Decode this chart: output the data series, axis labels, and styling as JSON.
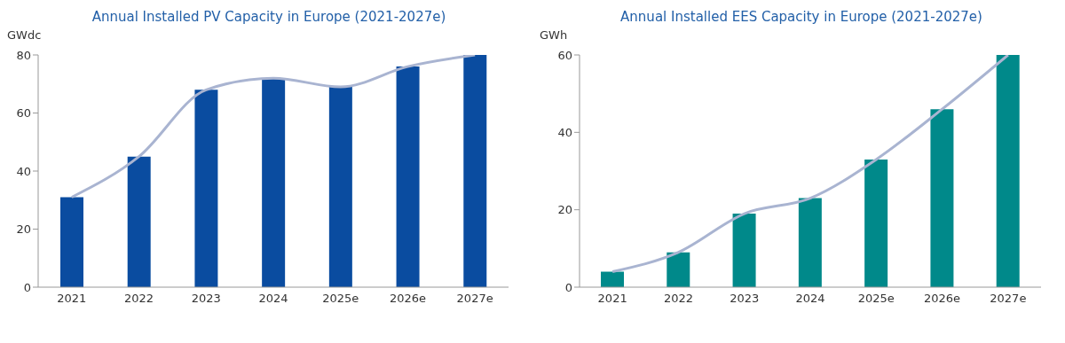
{
  "chart_data": [
    {
      "type": "bar",
      "title": "Annual Installed PV Capacity in Europe (2021-2027e)",
      "ylabel": "GWdc",
      "categories": [
        "2021",
        "2022",
        "2023",
        "2024",
        "2025e",
        "2026e",
        "2027e"
      ],
      "series": [
        {
          "color": "#0a4ca0",
          "values": [
            31,
            45,
            68,
            72,
            69,
            76,
            80
          ]
        },
        {
          "type": "line",
          "color": "#a9b4d1",
          "values": [
            31,
            45,
            68,
            72,
            69,
            76,
            80
          ]
        }
      ],
      "ylim": [
        0,
        80
      ],
      "yticks": [
        0,
        20,
        40,
        60,
        80
      ],
      "grid": false,
      "legend": false
    },
    {
      "type": "bar",
      "title": "Annual Installed EES Capacity in Europe (2021-2027e)",
      "ylabel": "GWh",
      "categories": [
        "2021",
        "2022",
        "2023",
        "2024",
        "2025e",
        "2026e",
        "2027e"
      ],
      "series": [
        {
          "color": "#00898a",
          "values": [
            4,
            9,
            19,
            23,
            33,
            46,
            60
          ]
        },
        {
          "type": "line",
          "color": "#a9b4d1",
          "values": [
            4,
            9,
            19,
            23,
            33,
            46,
            60
          ]
        }
      ],
      "ylim": [
        0,
        60
      ],
      "yticks": [
        0,
        20,
        40,
        60
      ],
      "grid": false,
      "legend": false
    }
  ]
}
